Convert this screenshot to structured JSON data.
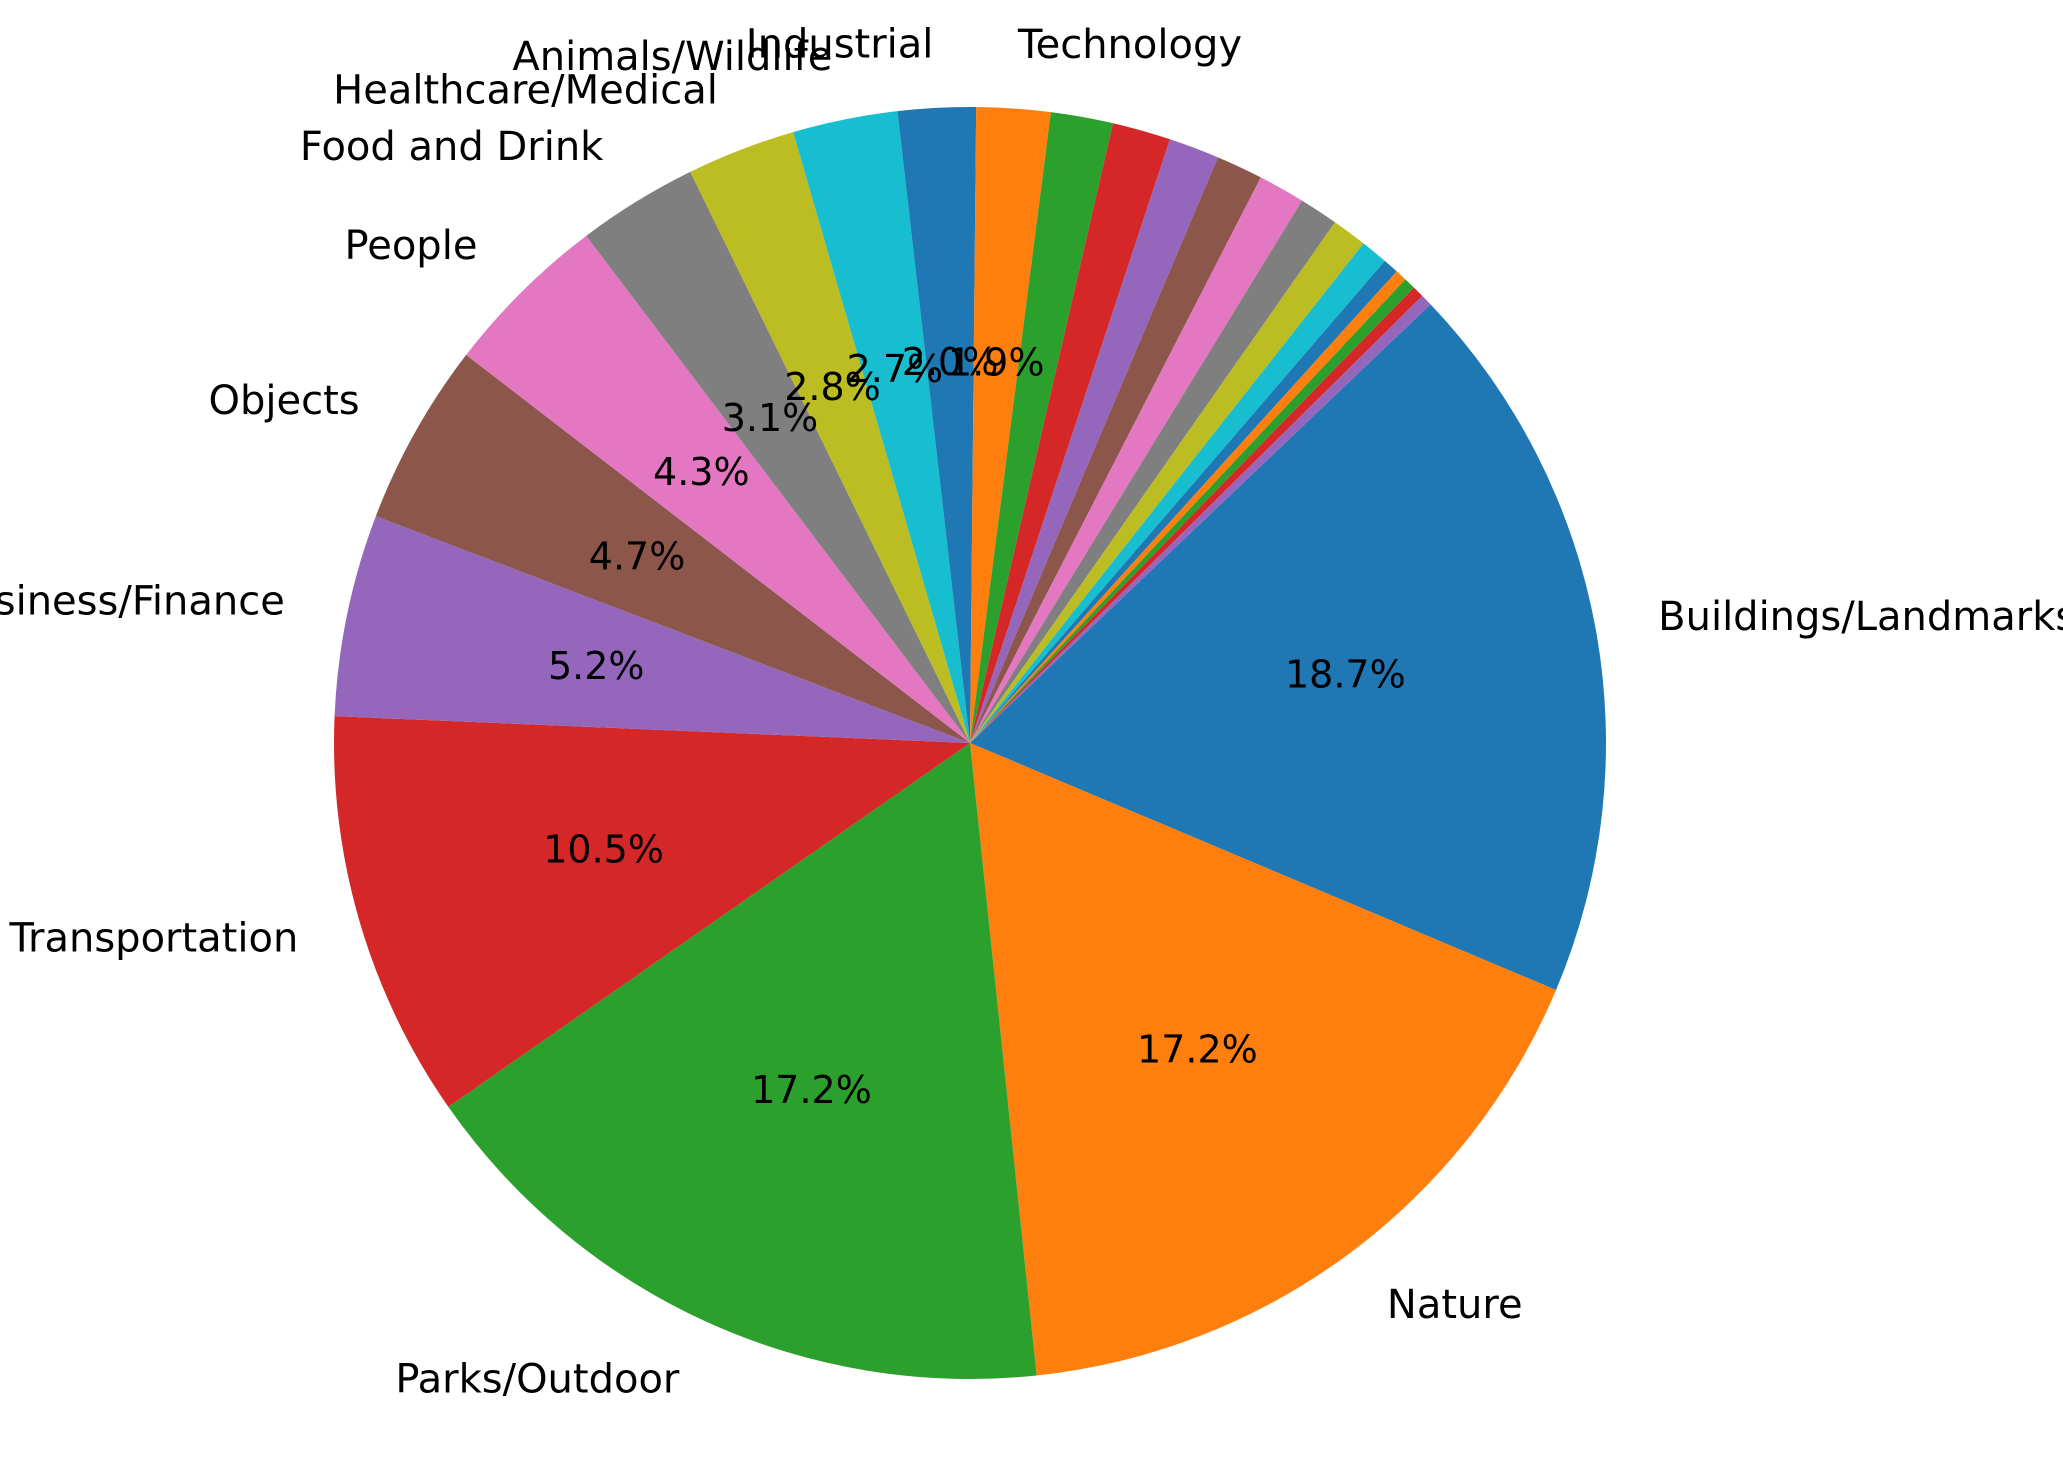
{
  "chart_data": {
    "type": "pie",
    "title": "",
    "start_angle_deg": 43.6,
    "direction": "clockwise",
    "slices": [
      {
        "label": "Buildings/Landmarks",
        "value": 18.7,
        "pct_label": "18.7%",
        "color": "#1f77b4"
      },
      {
        "label": "Nature",
        "value": 17.2,
        "pct_label": "17.2%",
        "color": "#ff7f0e"
      },
      {
        "label": "Parks/Outdoor",
        "value": 17.2,
        "pct_label": "17.2%",
        "color": "#2ca02c"
      },
      {
        "label": "Transportation",
        "value": 10.5,
        "pct_label": "10.5%",
        "color": "#d62728"
      },
      {
        "label": "Business/Finance",
        "value": 5.2,
        "pct_label": "5.2%",
        "color": "#9467bd"
      },
      {
        "label": "Objects",
        "value": 4.7,
        "pct_label": "4.7%",
        "color": "#8c564b"
      },
      {
        "label": "People",
        "value": 4.3,
        "pct_label": "4.3%",
        "color": "#e377c2"
      },
      {
        "label": "Food and Drink",
        "value": 3.1,
        "pct_label": "3.1%",
        "color": "#7f7f7f"
      },
      {
        "label": "Healthcare/Medical",
        "value": 2.8,
        "pct_label": "2.8%",
        "color": "#bcbd22"
      },
      {
        "label": "Animals/Wildlife",
        "value": 2.7,
        "pct_label": "2.7%",
        "color": "#17becf"
      },
      {
        "label": "Industrial",
        "value": 2.0,
        "pct_label": "2.0%",
        "color": "#1f77b4"
      },
      {
        "label": "Technology",
        "value": 1.9,
        "pct_label": "1.9%",
        "color": "#ff7f0e"
      },
      {
        "label": "",
        "value": 1.6,
        "pct_label": "",
        "color": "#2ca02c"
      },
      {
        "label": "",
        "value": 1.5,
        "pct_label": "",
        "color": "#d62728"
      },
      {
        "label": "",
        "value": 1.3,
        "pct_label": "",
        "color": "#9467bd"
      },
      {
        "label": "",
        "value": 1.2,
        "pct_label": "",
        "color": "#8c564b"
      },
      {
        "label": "",
        "value": 1.2,
        "pct_label": "",
        "color": "#e377c2"
      },
      {
        "label": "",
        "value": 1.0,
        "pct_label": "",
        "color": "#7f7f7f"
      },
      {
        "label": "",
        "value": 0.9,
        "pct_label": "",
        "color": "#bcbd22"
      },
      {
        "label": "",
        "value": 0.7,
        "pct_label": "",
        "color": "#17becf"
      },
      {
        "label": "",
        "value": 0.4,
        "pct_label": "",
        "color": "#1f77b4"
      },
      {
        "label": "",
        "value": 0.3,
        "pct_label": "",
        "color": "#ff7f0e"
      },
      {
        "label": "",
        "value": 0.3,
        "pct_label": "",
        "color": "#2ca02c"
      },
      {
        "label": "",
        "value": 0.3,
        "pct_label": "",
        "color": "#d62728"
      },
      {
        "label": "",
        "value": 0.3,
        "pct_label": "",
        "color": "#9467bd"
      }
    ]
  }
}
